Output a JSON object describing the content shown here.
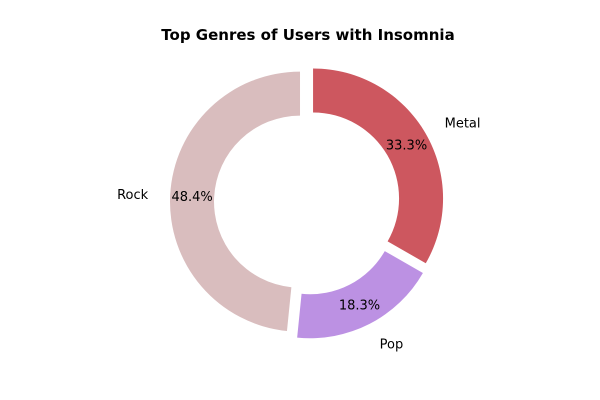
{
  "chart_data": {
    "type": "pie",
    "variant": "donut",
    "title": "Top Genres of Users with Insomnia",
    "start_angle_deg": 90,
    "direction": "clockwise",
    "slices": [
      {
        "label": "Metal",
        "value": 33.3,
        "pct_label": "33.3%",
        "color": "#cd575f",
        "exploded": true
      },
      {
        "label": "Pop",
        "value": 18.3,
        "pct_label": "18.3%",
        "color": "#bc91e3",
        "exploded": true
      },
      {
        "label": "Rock",
        "value": 48.4,
        "pct_label": "48.4%",
        "color": "#d9bdbe",
        "exploded": true
      }
    ]
  }
}
